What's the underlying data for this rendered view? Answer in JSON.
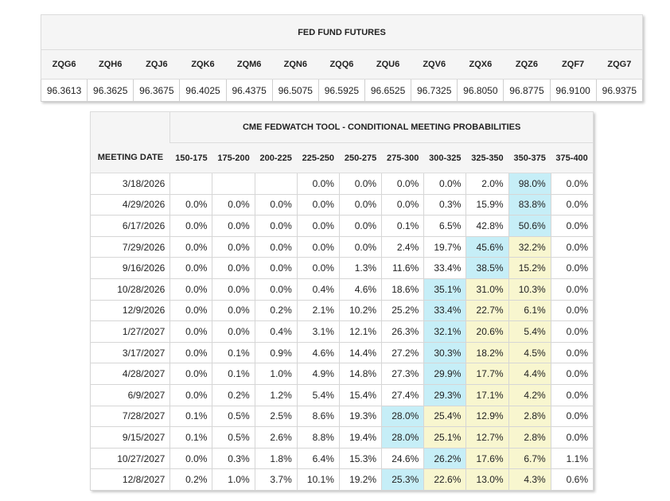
{
  "futures": {
    "title": "FED FUND FUTURES",
    "contracts": [
      "ZQG6",
      "ZQH6",
      "ZQJ6",
      "ZQK6",
      "ZQM6",
      "ZQN6",
      "ZQQ6",
      "ZQU6",
      "ZQV6",
      "ZQX6",
      "ZQZ6",
      "ZQF7",
      "ZQG7"
    ],
    "prices": [
      "96.3613",
      "96.3625",
      "96.3675",
      "96.4025",
      "96.4375",
      "96.5075",
      "96.5925",
      "96.6525",
      "96.7325",
      "96.8050",
      "96.8775",
      "96.9100",
      "96.9375"
    ]
  },
  "fedwatch": {
    "title": "CME FEDWATCH TOOL - CONDITIONAL MEETING PROBABILITIES",
    "date_header": "MEETING DATE",
    "ranges": [
      "150-175",
      "175-200",
      "200-225",
      "225-250",
      "250-275",
      "275-300",
      "300-325",
      "325-350",
      "350-375",
      "375-400"
    ],
    "colors": {
      "highlight_primary": "#c6eef7",
      "highlight_secondary": "#f8f6cf"
    },
    "rows": [
      {
        "date": "3/18/2026",
        "values": [
          "",
          "",
          "",
          "0.0%",
          "0.0%",
          "0.0%",
          "0.0%",
          "2.0%",
          "98.0%",
          "0.0%"
        ],
        "primary": 8,
        "secondary": []
      },
      {
        "date": "4/29/2026",
        "values": [
          "0.0%",
          "0.0%",
          "0.0%",
          "0.0%",
          "0.0%",
          "0.0%",
          "0.3%",
          "15.9%",
          "83.8%",
          "0.0%"
        ],
        "primary": 8,
        "secondary": []
      },
      {
        "date": "6/17/2026",
        "values": [
          "0.0%",
          "0.0%",
          "0.0%",
          "0.0%",
          "0.0%",
          "0.1%",
          "6.5%",
          "42.8%",
          "50.6%",
          "0.0%"
        ],
        "primary": 8,
        "secondary": []
      },
      {
        "date": "7/29/2026",
        "values": [
          "0.0%",
          "0.0%",
          "0.0%",
          "0.0%",
          "0.0%",
          "2.4%",
          "19.7%",
          "45.6%",
          "32.2%",
          "0.0%"
        ],
        "primary": 7,
        "secondary": [
          8
        ]
      },
      {
        "date": "9/16/2026",
        "values": [
          "0.0%",
          "0.0%",
          "0.0%",
          "0.0%",
          "1.3%",
          "11.6%",
          "33.4%",
          "38.5%",
          "15.2%",
          "0.0%"
        ],
        "primary": 7,
        "secondary": [
          8
        ]
      },
      {
        "date": "10/28/2026",
        "values": [
          "0.0%",
          "0.0%",
          "0.0%",
          "0.4%",
          "4.6%",
          "18.6%",
          "35.1%",
          "31.0%",
          "10.3%",
          "0.0%"
        ],
        "primary": 6,
        "secondary": [
          7,
          8
        ]
      },
      {
        "date": "12/9/2026",
        "values": [
          "0.0%",
          "0.0%",
          "0.2%",
          "2.1%",
          "10.2%",
          "25.2%",
          "33.4%",
          "22.7%",
          "6.1%",
          "0.0%"
        ],
        "primary": 6,
        "secondary": [
          7,
          8
        ]
      },
      {
        "date": "1/27/2027",
        "values": [
          "0.0%",
          "0.0%",
          "0.4%",
          "3.1%",
          "12.1%",
          "26.3%",
          "32.1%",
          "20.6%",
          "5.4%",
          "0.0%"
        ],
        "primary": 6,
        "secondary": [
          7,
          8
        ]
      },
      {
        "date": "3/17/2027",
        "values": [
          "0.0%",
          "0.1%",
          "0.9%",
          "4.6%",
          "14.4%",
          "27.2%",
          "30.3%",
          "18.2%",
          "4.5%",
          "0.0%"
        ],
        "primary": 6,
        "secondary": [
          7,
          8
        ]
      },
      {
        "date": "4/28/2027",
        "values": [
          "0.0%",
          "0.1%",
          "1.0%",
          "4.9%",
          "14.8%",
          "27.3%",
          "29.9%",
          "17.7%",
          "4.4%",
          "0.0%"
        ],
        "primary": 6,
        "secondary": [
          7,
          8
        ]
      },
      {
        "date": "6/9/2027",
        "values": [
          "0.0%",
          "0.2%",
          "1.2%",
          "5.4%",
          "15.4%",
          "27.4%",
          "29.3%",
          "17.1%",
          "4.2%",
          "0.0%"
        ],
        "primary": 6,
        "secondary": [
          7,
          8
        ]
      },
      {
        "date": "7/28/2027",
        "values": [
          "0.1%",
          "0.5%",
          "2.5%",
          "8.6%",
          "19.3%",
          "28.0%",
          "25.4%",
          "12.9%",
          "2.8%",
          "0.0%"
        ],
        "primary": 5,
        "secondary": [
          6,
          7,
          8
        ]
      },
      {
        "date": "9/15/2027",
        "values": [
          "0.1%",
          "0.5%",
          "2.6%",
          "8.8%",
          "19.4%",
          "28.0%",
          "25.1%",
          "12.7%",
          "2.8%",
          "0.0%"
        ],
        "primary": 5,
        "secondary": [
          6,
          7,
          8
        ]
      },
      {
        "date": "10/27/2027",
        "values": [
          "0.0%",
          "0.3%",
          "1.8%",
          "6.4%",
          "15.3%",
          "24.6%",
          "26.2%",
          "17.6%",
          "6.7%",
          "1.1%"
        ],
        "primary": 6,
        "secondary": [
          7,
          8
        ]
      },
      {
        "date": "12/8/2027",
        "values": [
          "0.2%",
          "1.0%",
          "3.7%",
          "10.1%",
          "19.2%",
          "25.3%",
          "22.6%",
          "13.0%",
          "4.3%",
          "0.6%"
        ],
        "primary": 5,
        "secondary": [
          6,
          7,
          8
        ]
      }
    ]
  }
}
